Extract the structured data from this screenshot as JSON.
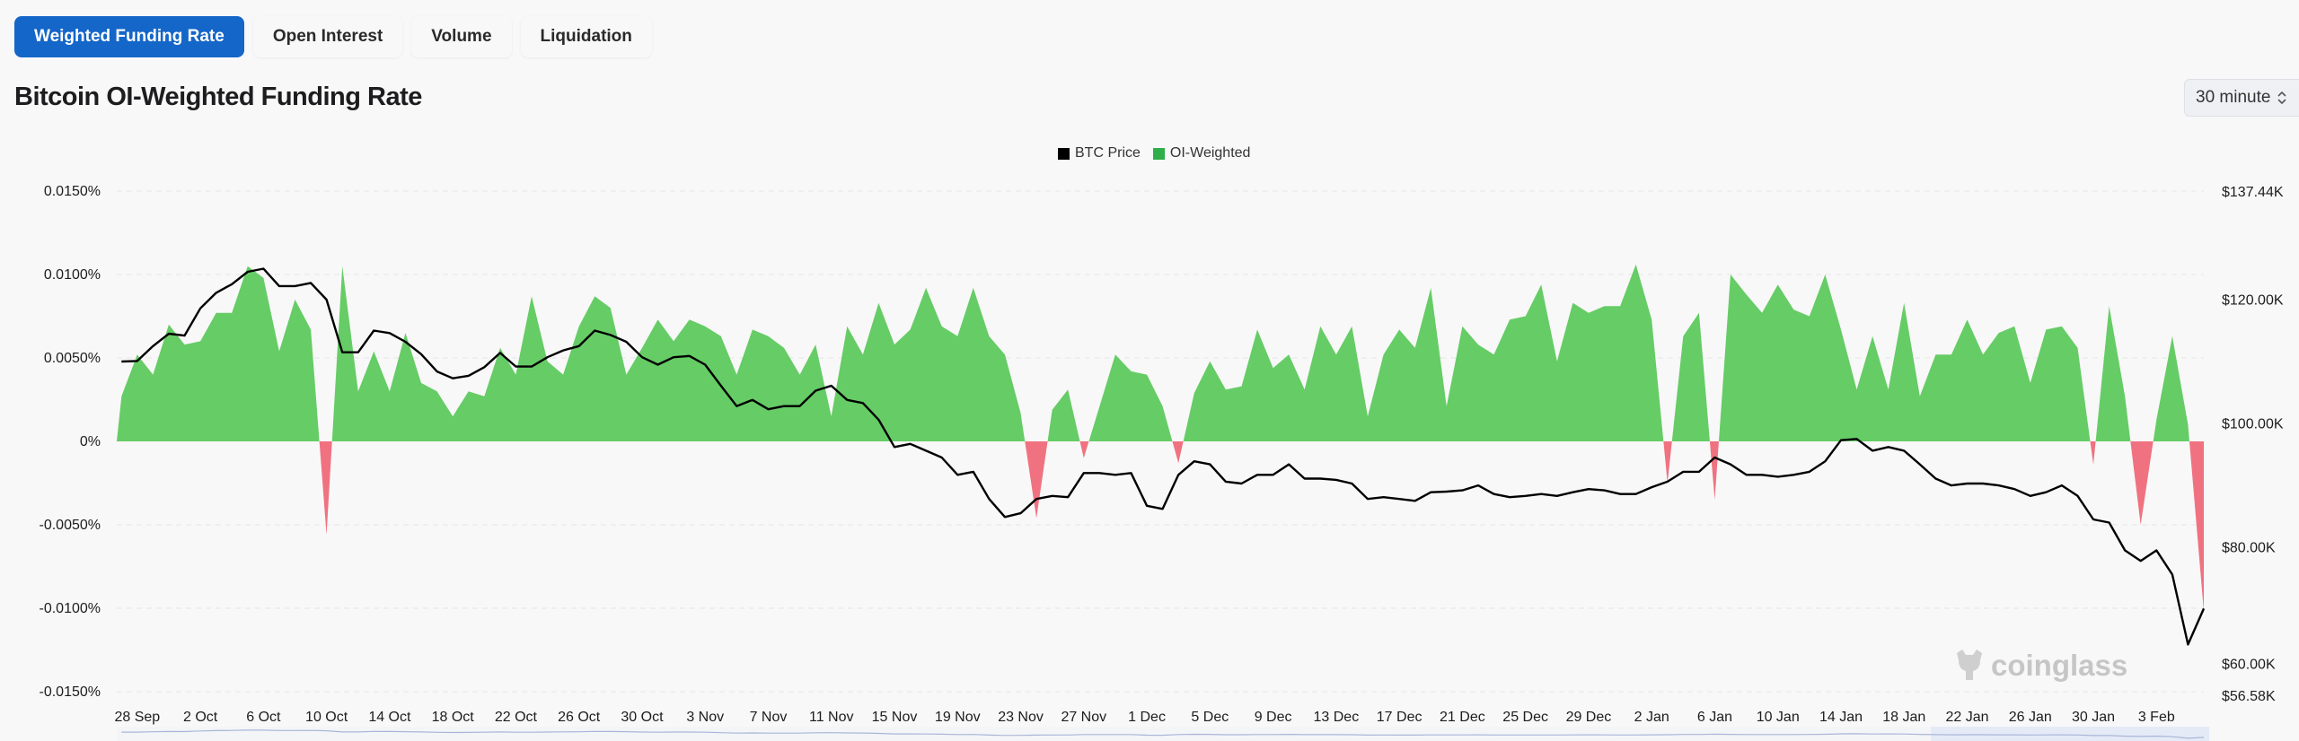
{
  "tabs": [
    {
      "label": "Weighted Funding Rate",
      "active": true
    },
    {
      "label": "Open Interest",
      "active": false
    },
    {
      "label": "Volume",
      "active": false
    },
    {
      "label": "Liquidation",
      "active": false
    }
  ],
  "title": "Bitcoin OI-Weighted Funding Rate",
  "interval_select": {
    "value": "30 minute",
    "icon": "chevron-up-down-icon"
  },
  "watermark": "coinglass",
  "colors": {
    "accent": "#1466c8",
    "positive": "#66cc66",
    "negative": "#f07280",
    "price": "#000000"
  },
  "chart_data": {
    "type": "area",
    "legend": [
      {
        "name": "BTC Price",
        "color": "#000000"
      },
      {
        "name": "OI-Weighted",
        "color": "#2fae4a"
      }
    ],
    "legend_position": "top-center",
    "grid": true,
    "y_left": {
      "ticks": [
        "0.0150%",
        "0.0100%",
        "0.0050%",
        "0%",
        "-0.0050%",
        "-0.0100%",
        "-0.0150%"
      ],
      "range": [
        -0.015,
        0.015
      ],
      "unit": "%"
    },
    "y_right": {
      "ticks": [
        "$137.44K",
        "$120.00K",
        "$100.00K",
        "$80.00K",
        "$60.00K",
        "$56.58K"
      ],
      "range": [
        56.58,
        137.44
      ],
      "unit": "$K"
    },
    "x_ticks": [
      "28 Sep",
      "2 Oct",
      "6 Oct",
      "10 Oct",
      "14 Oct",
      "18 Oct",
      "22 Oct",
      "26 Oct",
      "30 Oct",
      "3 Nov",
      "7 Nov",
      "11 Nov",
      "15 Nov",
      "19 Nov",
      "23 Nov",
      "27 Nov",
      "1 Dec",
      "5 Dec",
      "9 Dec",
      "13 Dec",
      "17 Dec",
      "21 Dec",
      "25 Dec",
      "29 Dec",
      "2 Jan",
      "6 Jan",
      "10 Jan",
      "14 Jan",
      "18 Jan",
      "22 Jan",
      "26 Jan",
      "30 Jan",
      "3 Feb"
    ],
    "x_start": "27 Sep",
    "series": [
      {
        "name": "OI-Weighted",
        "axis": "left",
        "values": [
          0.0027,
          0.0052,
          0.004,
          0.007,
          0.0058,
          0.006,
          0.0077,
          0.0077,
          0.0105,
          0.0098,
          0.0054,
          0.0085,
          0.0067,
          -0.0056,
          0.0105,
          0.003,
          0.0054,
          0.003,
          0.0065,
          0.0035,
          0.003,
          0.0015,
          0.003,
          0.0027,
          0.0056,
          0.004,
          0.0087,
          0.0048,
          0.004,
          0.0069,
          0.0087,
          0.008,
          0.004,
          0.0056,
          0.0073,
          0.006,
          0.0073,
          0.0069,
          0.0063,
          0.004,
          0.0067,
          0.0063,
          0.0056,
          0.004,
          0.0058,
          0.0015,
          0.0069,
          0.0052,
          0.0083,
          0.0058,
          0.0067,
          0.0092,
          0.0069,
          0.0063,
          0.0092,
          0.0063,
          0.0052,
          0.0017,
          -0.0046,
          0.0019,
          0.0031,
          -0.001,
          0.0021,
          0.0052,
          0.0042,
          0.004,
          0.0021,
          -0.0013,
          0.0029,
          0.0048,
          0.0031,
          0.0033,
          0.0067,
          0.0044,
          0.0052,
          0.0031,
          0.0069,
          0.0052,
          0.0069,
          0.0015,
          0.0052,
          0.0067,
          0.0056,
          0.0092,
          0.0021,
          0.0069,
          0.0058,
          0.0052,
          0.0073,
          0.0075,
          0.0094,
          0.0048,
          0.0083,
          0.0077,
          0.0081,
          0.0081,
          0.0106,
          0.0073,
          -0.0025,
          0.0063,
          0.0077,
          -0.0035,
          0.01,
          0.0088,
          0.0077,
          0.0094,
          0.0079,
          0.0075,
          0.01,
          0.0067,
          0.0031,
          0.0063,
          0.0031,
          0.0083,
          0.0027,
          0.0052,
          0.0052,
          0.0073,
          0.0052,
          0.0065,
          0.0069,
          0.0035,
          0.0067,
          0.0069,
          0.0056,
          -0.0014,
          0.0081,
          0.0027,
          -0.005,
          0.0013,
          0.0063,
          0.001,
          -0.0102
        ]
      },
      {
        "name": "BTC Price",
        "axis": "right",
        "values": [
          109.9,
          110.0,
          112.4,
          114.4,
          114.1,
          118.5,
          121.0,
          122.4,
          124.4,
          124.9,
          122.1,
          122.1,
          122.6,
          119.9,
          111.4,
          111.4,
          114.9,
          114.5,
          113.1,
          111.1,
          108.3,
          107.2,
          107.6,
          109.0,
          111.3,
          109.1,
          109.1,
          110.6,
          111.7,
          112.4,
          114.9,
          114.2,
          113.1,
          110.6,
          109.4,
          110.6,
          110.8,
          109.4,
          106.0,
          102.7,
          103.7,
          102.2,
          102.7,
          102.7,
          105.2,
          106.0,
          103.7,
          103.2,
          100.5,
          96.1,
          96.6,
          95.5,
          94.4,
          91.6,
          92.1,
          87.7,
          84.8,
          85.4,
          87.7,
          88.2,
          88.0,
          91.9,
          91.9,
          91.6,
          91.9,
          86.6,
          86.1,
          91.6,
          93.8,
          93.3,
          90.5,
          90.2,
          91.6,
          91.6,
          93.3,
          91.0,
          91.0,
          90.8,
          90.2,
          87.7,
          88.0,
          87.7,
          87.4,
          88.8,
          88.9,
          89.1,
          89.9,
          88.5,
          88.0,
          88.2,
          88.5,
          88.2,
          88.8,
          89.3,
          89.1,
          88.5,
          88.5,
          89.6,
          90.5,
          92.1,
          92.1,
          94.4,
          93.3,
          91.6,
          91.6,
          91.3,
          91.6,
          92.1,
          93.8,
          97.2,
          97.4,
          95.5,
          96.1,
          95.5,
          93.3,
          91.0,
          89.9,
          90.2,
          90.2,
          89.9,
          89.3,
          88.2,
          88.8,
          89.9,
          88.2,
          84.4,
          83.9,
          79.4,
          77.7,
          79.4,
          75.5,
          64.2,
          70.0
        ]
      }
    ]
  }
}
